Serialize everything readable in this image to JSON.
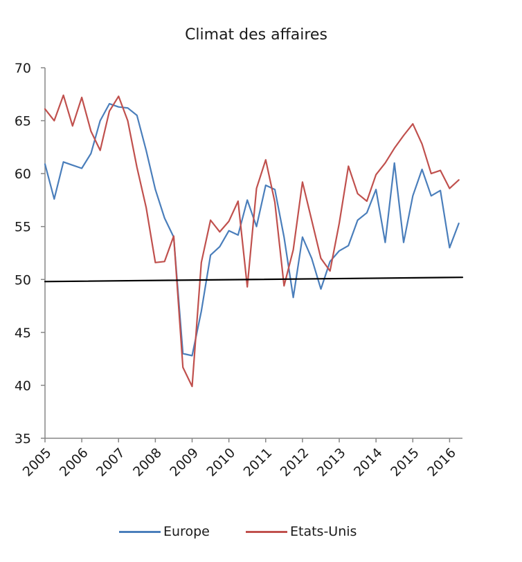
{
  "chart_data": {
    "type": "line",
    "title": "Climat des affaires",
    "xlabel": "",
    "ylabel": "",
    "ylim": [
      35,
      70
    ],
    "xlim": [
      2005.0,
      2016.35
    ],
    "y_ticks": [
      35,
      40,
      45,
      50,
      55,
      60,
      65,
      70
    ],
    "x_ticks": [
      2005,
      2006,
      2007,
      2008,
      2009,
      2010,
      2011,
      2012,
      2013,
      2014,
      2015,
      2016
    ],
    "x_tick_labels": [
      "2005",
      "2006",
      "2007",
      "2008",
      "2009",
      "2010",
      "2011",
      "2012",
      "2013",
      "2014",
      "2015",
      "2016"
    ],
    "grid": false,
    "legend": "bottom",
    "series": [
      {
        "name": "Europe",
        "color": "#4a7ebb",
        "x": [
          2005.0,
          2005.25,
          2005.5,
          2005.75,
          2006.0,
          2006.25,
          2006.5,
          2006.75,
          2007.0,
          2007.25,
          2007.5,
          2007.75,
          2008.0,
          2008.25,
          2008.5,
          2008.75,
          2009.0,
          2009.25,
          2009.5,
          2009.75,
          2010.0,
          2010.25,
          2010.5,
          2010.75,
          2011.0,
          2011.25,
          2011.5,
          2011.75,
          2012.0,
          2012.25,
          2012.5,
          2012.75,
          2013.0,
          2013.25,
          2013.5,
          2013.75,
          2014.0,
          2014.25,
          2014.5,
          2014.75,
          2015.0,
          2015.25,
          2015.5,
          2015.75,
          2016.0,
          2016.25
        ],
        "values": [
          60.9,
          57.6,
          61.1,
          60.8,
          60.5,
          61.9,
          65.0,
          66.6,
          66.3,
          66.2,
          65.5,
          62.2,
          58.5,
          55.8,
          54.0,
          43.0,
          42.8,
          47.0,
          52.3,
          53.1,
          54.6,
          54.2,
          57.5,
          55.0,
          58.9,
          58.5,
          54.0,
          48.3,
          54.0,
          52.0,
          49.1,
          51.7,
          52.7,
          53.2,
          55.6,
          56.3,
          58.5,
          53.5,
          61.0,
          53.5,
          57.9,
          60.4,
          57.9,
          58.4,
          53.0,
          55.3
        ]
      },
      {
        "name": "Etats-Unis",
        "color": "#c0504d",
        "x": [
          2005.0,
          2005.25,
          2005.5,
          2005.75,
          2006.0,
          2006.25,
          2006.5,
          2006.75,
          2007.0,
          2007.25,
          2007.5,
          2007.75,
          2008.0,
          2008.25,
          2008.5,
          2008.75,
          2009.0,
          2009.25,
          2009.5,
          2009.75,
          2010.0,
          2010.25,
          2010.5,
          2010.75,
          2011.0,
          2011.25,
          2011.5,
          2011.75,
          2012.0,
          2012.25,
          2012.5,
          2012.75,
          2013.0,
          2013.25,
          2013.5,
          2013.75,
          2014.0,
          2014.25,
          2014.5,
          2014.75,
          2015.0,
          2015.25,
          2015.5,
          2015.75,
          2016.0,
          2016.25
        ],
        "values": [
          66.1,
          65.0,
          67.4,
          64.5,
          67.2,
          64.0,
          62.2,
          65.9,
          67.3,
          65.0,
          60.6,
          56.8,
          51.6,
          51.7,
          54.1,
          41.7,
          39.9,
          51.6,
          55.6,
          54.5,
          55.5,
          57.4,
          49.3,
          58.6,
          61.3,
          57.3,
          49.4,
          52.8,
          59.2,
          55.6,
          52.0,
          50.8,
          55.3,
          60.7,
          58.1,
          57.4,
          59.9,
          61.0,
          62.4,
          63.6,
          64.7,
          62.8,
          60.0,
          60.3,
          58.6,
          59.4
        ]
      },
      {
        "name": "",
        "color": "#000000",
        "x": [
          2005.0,
          2016.35
        ],
        "values": [
          49.8,
          50.2
        ]
      }
    ]
  }
}
